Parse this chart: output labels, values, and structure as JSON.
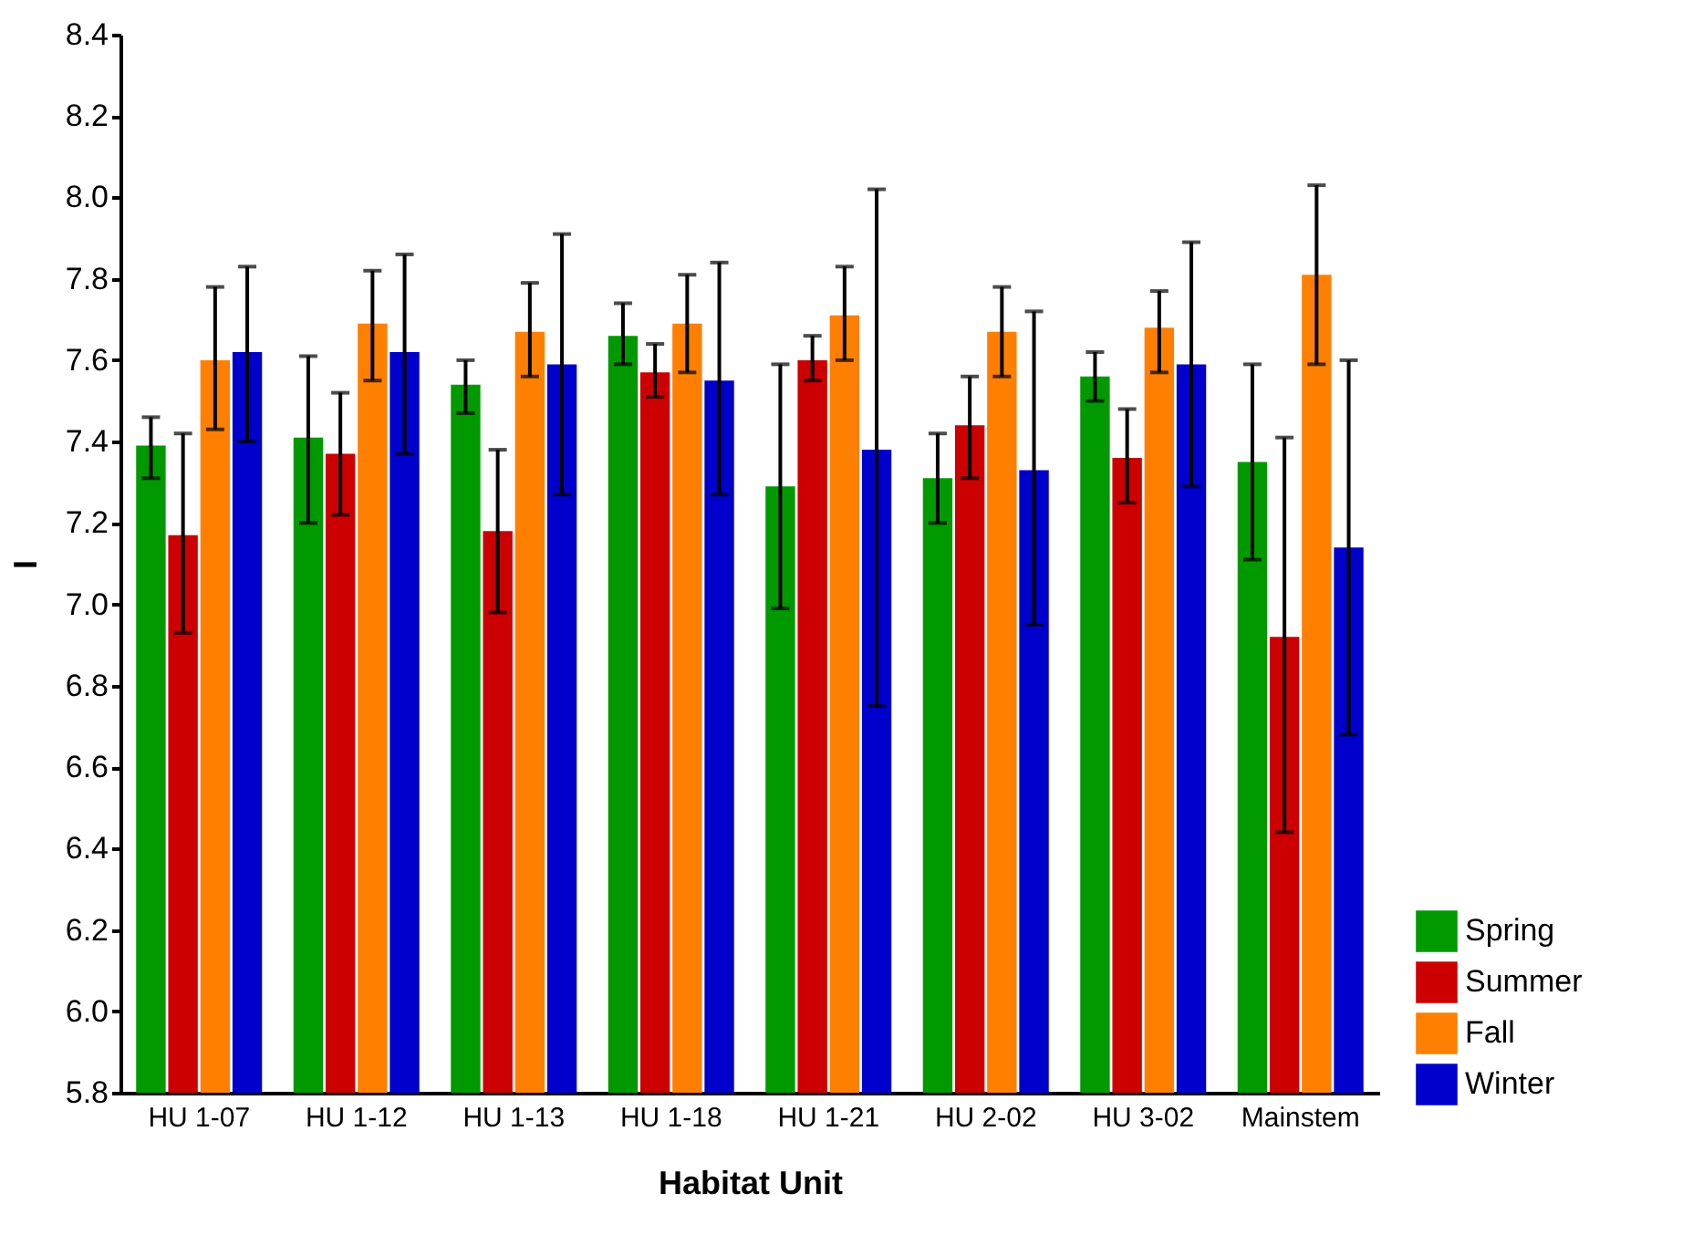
{
  "chart_data": {
    "type": "bar",
    "xlabel": "Habitat Unit",
    "ylabel": "I",
    "categories": [
      "HU 1-07",
      "HU 1-12",
      "HU 1-13",
      "HU 1-18",
      "HU 1-21",
      "HU 2-02",
      "HU 3-02",
      "Mainstem"
    ],
    "series": [
      {
        "name": "Spring",
        "color": "#009900",
        "values": [
          7.39,
          7.41,
          7.54,
          7.66,
          7.29,
          7.31,
          7.56,
          7.35
        ],
        "errors": [
          [
            7.31,
            7.46
          ],
          [
            7.2,
            7.61
          ],
          [
            7.47,
            7.6
          ],
          [
            7.59,
            7.74
          ],
          [
            6.99,
            7.59
          ],
          [
            7.2,
            7.42
          ],
          [
            7.5,
            7.62
          ],
          [
            7.11,
            7.59
          ]
        ]
      },
      {
        "name": "Summer",
        "color": "#cc0000",
        "values": [
          7.17,
          7.37,
          7.18,
          7.57,
          7.6,
          7.44,
          7.36,
          6.92
        ],
        "errors": [
          [
            6.93,
            7.42
          ],
          [
            7.22,
            7.52
          ],
          [
            6.98,
            7.38
          ],
          [
            7.51,
            7.64
          ],
          [
            7.55,
            7.66
          ],
          [
            7.31,
            7.56
          ],
          [
            7.25,
            7.48
          ],
          [
            6.44,
            7.41
          ]
        ]
      },
      {
        "name": "Fall",
        "color": "#ff8000",
        "values": [
          7.6,
          7.69,
          7.67,
          7.69,
          7.71,
          7.67,
          7.68,
          7.81
        ],
        "errors": [
          [
            7.43,
            7.78
          ],
          [
            7.55,
            7.82
          ],
          [
            7.56,
            7.79
          ],
          [
            7.57,
            7.81
          ],
          [
            7.6,
            7.83
          ],
          [
            7.56,
            7.78
          ],
          [
            7.57,
            7.77
          ],
          [
            7.59,
            8.03
          ]
        ]
      },
      {
        "name": "Winter",
        "color": "#0000cc",
        "values": [
          7.62,
          7.62,
          7.59,
          7.55,
          7.38,
          7.33,
          7.59,
          7.14
        ],
        "errors": [
          [
            7.4,
            7.83
          ],
          [
            7.37,
            7.86
          ],
          [
            7.27,
            7.91
          ],
          [
            7.27,
            7.84
          ],
          [
            6.75,
            8.02
          ],
          [
            6.95,
            7.72
          ],
          [
            7.29,
            7.89
          ],
          [
            6.68,
            7.6
          ]
        ]
      }
    ],
    "ylim": [
      5.8,
      8.4
    ],
    "yticks": [
      5.8,
      {
        "value": 6,
        "label": "6.0"
      },
      6.2,
      6.4,
      6.6,
      6.8,
      {
        "value": 7,
        "label": "7.0"
      },
      7.2,
      7.4,
      7.6,
      7.8,
      {
        "value": 8,
        "label": "8.0"
      },
      8.2,
      8.4
    ],
    "grid": false,
    "legend": "bottom right"
  }
}
